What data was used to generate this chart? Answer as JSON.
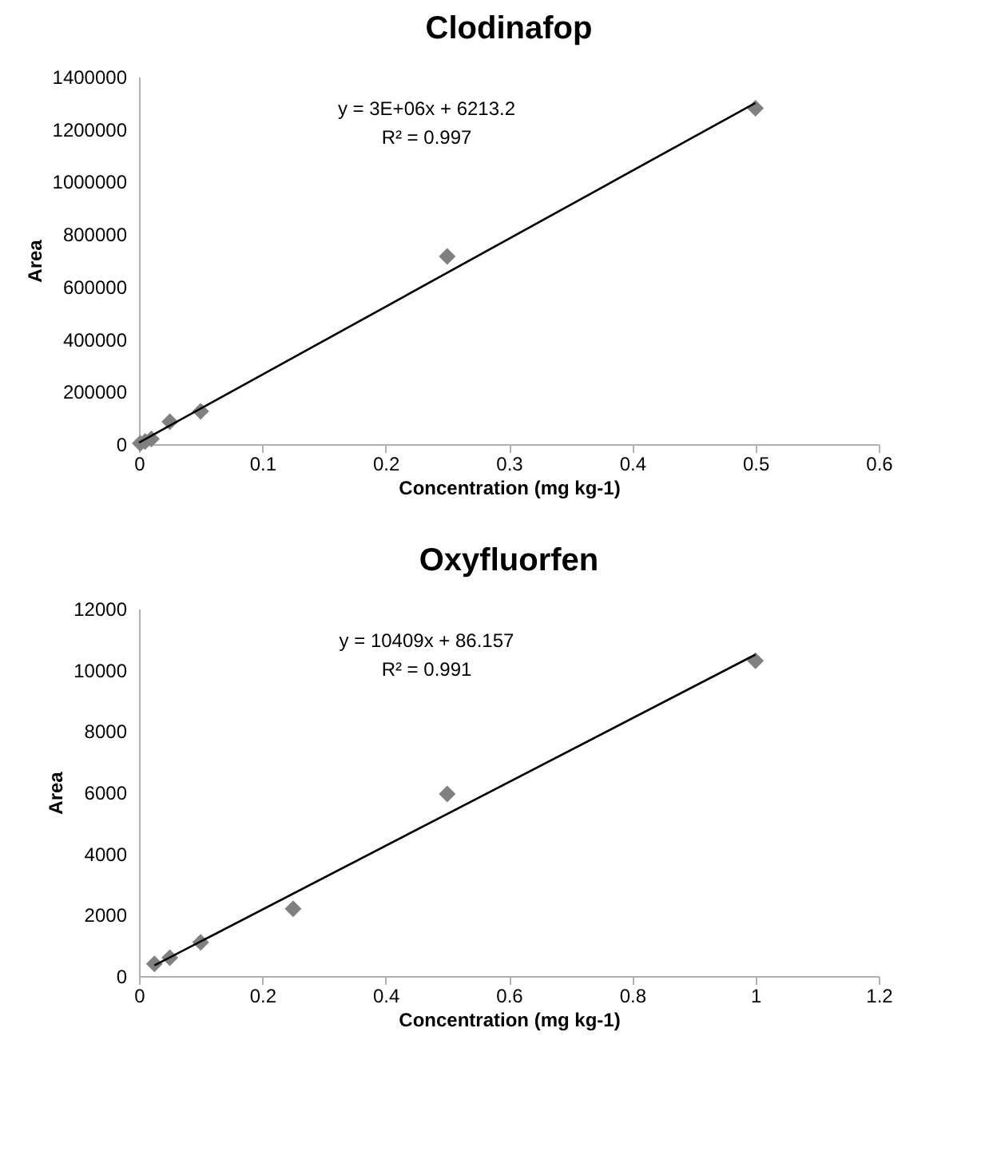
{
  "chart_data": [
    {
      "type": "scatter",
      "title": "Clodinafop",
      "xlabel": "Concentration (mg kg-1)",
      "ylabel": "Area",
      "xlim": [
        0,
        0.6
      ],
      "xticks": [
        0,
        0.1,
        0.2,
        0.3,
        0.4,
        0.5,
        0.6
      ],
      "ylim": [
        0,
        1400000
      ],
      "yticks": [
        0,
        200000,
        400000,
        600000,
        800000,
        1000000,
        1200000,
        1400000
      ],
      "grid": false,
      "annotations": [
        "y = 3E+06x + 6213.2",
        "R² = 0.997"
      ],
      "series": [
        {
          "marker": "diamond",
          "color": "#808080",
          "x": [
            0.001,
            0.005,
            0.01,
            0.025,
            0.05,
            0.25,
            0.5
          ],
          "values": [
            3000,
            10000,
            20000,
            85000,
            125000,
            715000,
            1280000
          ]
        },
        {
          "type": "line",
          "color": "#000000",
          "x": [
            0,
            0.5
          ],
          "values": [
            6000,
            1300000
          ]
        }
      ]
    },
    {
      "type": "scatter",
      "title": "Oxyfluorfen",
      "xlabel": "Concentration (mg kg-1)",
      "ylabel": "Area",
      "xlim": [
        0,
        1.2
      ],
      "xticks": [
        0,
        0.2,
        0.4,
        0.6,
        0.8,
        1,
        1.2
      ],
      "ylim": [
        0,
        12000
      ],
      "yticks": [
        0,
        2000,
        4000,
        6000,
        8000,
        10000,
        12000
      ],
      "grid": false,
      "annotations": [
        "y = 10409x + 86.157",
        "R² = 0.991"
      ],
      "series": [
        {
          "marker": "diamond",
          "color": "#808080",
          "x": [
            0.025,
            0.05,
            0.1,
            0.25,
            0.5,
            1
          ],
          "values": [
            400,
            600,
            1100,
            2200,
            5950,
            10300
          ]
        },
        {
          "type": "line",
          "color": "#000000",
          "x": [
            0.025,
            1
          ],
          "values": [
            350,
            10500
          ]
        }
      ]
    }
  ]
}
